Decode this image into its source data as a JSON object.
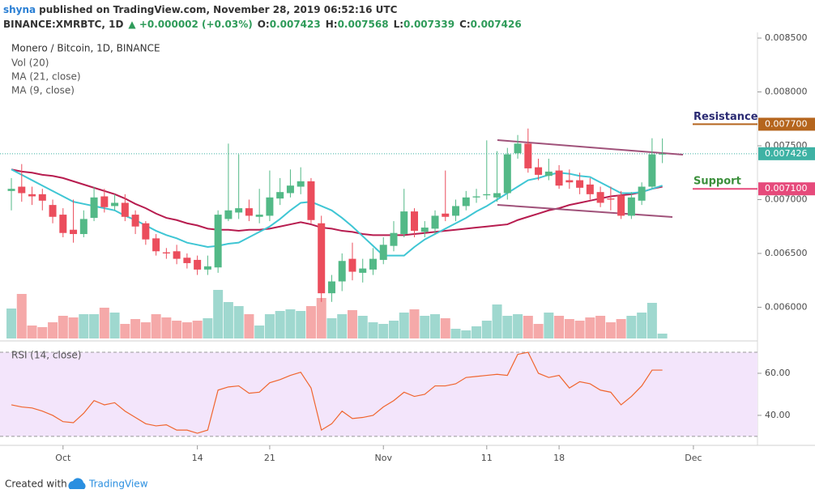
{
  "header": {
    "author": "shyna",
    "published": "published on TradingView.com, November 28, 2019 06:52:16 UTC",
    "symbol": "BINANCE:XMRBTC, 1D",
    "change": "▲ +0.000002 (+0.03%)",
    "ohlc": [
      {
        "key": "O:",
        "value": "0.007423"
      },
      {
        "key": "H:",
        "value": "0.007568"
      },
      {
        "key": "L:",
        "value": "0.007339"
      },
      {
        "key": "C:",
        "value": "0.007426"
      }
    ]
  },
  "footer": {
    "created": "Created with",
    "brand": "TradingView"
  },
  "chart_data": [
    {
      "type": "candlestick",
      "title": "Monero / Bitcoin, 1D, BINANCE",
      "indicators": [
        "Vol (20)",
        "MA (21, close)",
        "MA (9, close)"
      ],
      "up_color": "#53b987",
      "down_color": "#eb4d5c",
      "xlim": [
        -1.1,
        72.2
      ],
      "xticks": [
        {
          "value": 5,
          "label": "Oct"
        },
        {
          "value": 18,
          "label": "14"
        },
        {
          "value": 25,
          "label": "21"
        },
        {
          "value": 36,
          "label": "Nov"
        },
        {
          "value": 46,
          "label": "11"
        },
        {
          "value": 53,
          "label": "18"
        },
        {
          "value": 66,
          "label": "Dec"
        }
      ],
      "ylim": [
        0.00571,
        0.008553
      ],
      "yticks": [
        {
          "value": 0.006,
          "label": "0.006000"
        },
        {
          "value": 0.0065,
          "label": "0.006500"
        },
        {
          "value": 0.007,
          "label": "0.007000"
        },
        {
          "value": 0.0075,
          "label": "0.007500"
        },
        {
          "value": 0.008,
          "label": "0.008000"
        },
        {
          "value": 0.0085,
          "label": "0.008500"
        }
      ],
      "open": [
        0.00708,
        0.00712,
        0.00705,
        0.00705,
        0.00695,
        0.00686,
        0.00672,
        0.00668,
        0.00683,
        0.00703,
        0.00694,
        0.00697,
        0.00686,
        0.00678,
        0.00664,
        0.00651,
        0.00652,
        0.00646,
        0.00644,
        0.00635,
        0.00637,
        0.00682,
        0.00688,
        0.00692,
        0.00684,
        0.00685,
        0.00701,
        0.00706,
        0.00712,
        0.00717,
        0.00678,
        0.00613,
        0.00624,
        0.00645,
        0.00632,
        0.00635,
        0.00644,
        0.00657,
        0.00668,
        0.00689,
        0.0067,
        0.00673,
        0.00687,
        0.00685,
        0.00694,
        0.00702,
        0.00704,
        0.00702,
        0.00706,
        0.00743,
        0.00752,
        0.0073,
        0.00722,
        0.00727,
        0.00718,
        0.00718,
        0.00714,
        0.00707,
        0.00701,
        0.00704,
        0.00685,
        0.00699,
        0.00712,
        0.007423
      ],
      "high": [
        0.0072,
        0.00733,
        0.00712,
        0.0071,
        0.007,
        0.00692,
        0.007,
        0.0069,
        0.00712,
        0.0071,
        0.00705,
        0.00705,
        0.0069,
        0.0068,
        0.00668,
        0.00655,
        0.00658,
        0.0065,
        0.00648,
        0.00648,
        0.0069,
        0.00752,
        0.00742,
        0.007,
        0.0071,
        0.00727,
        0.0072,
        0.00728,
        0.0073,
        0.0072,
        0.00685,
        0.0063,
        0.0065,
        0.0066,
        0.00645,
        0.00655,
        0.00665,
        0.0068,
        0.0071,
        0.00692,
        0.0068,
        0.0069,
        0.00727,
        0.007,
        0.00708,
        0.0071,
        0.00755,
        0.00745,
        0.00748,
        0.0076,
        0.00766,
        0.00738,
        0.00738,
        0.00732,
        0.00728,
        0.00725,
        0.0072,
        0.00712,
        0.00712,
        0.00708,
        0.00707,
        0.00716,
        0.00757,
        0.007568
      ],
      "low": [
        0.0069,
        0.00698,
        0.00695,
        0.0069,
        0.00678,
        0.00665,
        0.0066,
        0.00665,
        0.0068,
        0.00688,
        0.0069,
        0.0068,
        0.00668,
        0.00658,
        0.00648,
        0.00645,
        0.0064,
        0.00636,
        0.0063,
        0.0063,
        0.00632,
        0.0068,
        0.00682,
        0.0068,
        0.00678,
        0.0068,
        0.00695,
        0.00702,
        0.00705,
        0.00678,
        0.00605,
        0.00605,
        0.00615,
        0.00625,
        0.00623,
        0.0063,
        0.0064,
        0.00652,
        0.00665,
        0.00665,
        0.00665,
        0.00668,
        0.0068,
        0.0068,
        0.0069,
        0.00697,
        0.007,
        0.00698,
        0.007,
        0.00738,
        0.00725,
        0.00718,
        0.00718,
        0.0071,
        0.0071,
        0.00705,
        0.007,
        0.00693,
        0.0069,
        0.00682,
        0.00682,
        0.00695,
        0.0071,
        0.007339
      ],
      "close": [
        0.0071,
        0.00706,
        0.00703,
        0.00699,
        0.00684,
        0.00669,
        0.00668,
        0.00682,
        0.00702,
        0.00693,
        0.00697,
        0.00684,
        0.00675,
        0.00663,
        0.00652,
        0.0065,
        0.00645,
        0.00641,
        0.00635,
        0.00638,
        0.00686,
        0.0069,
        0.00692,
        0.00685,
        0.00686,
        0.00702,
        0.00707,
        0.00713,
        0.00717,
        0.00681,
        0.00613,
        0.00624,
        0.00643,
        0.00633,
        0.00636,
        0.00645,
        0.00658,
        0.00669,
        0.00689,
        0.00671,
        0.00674,
        0.00685,
        0.00684,
        0.00694,
        0.00702,
        0.00703,
        0.00705,
        0.00706,
        0.00742,
        0.00752,
        0.00729,
        0.00723,
        0.00726,
        0.00713,
        0.00716,
        0.00711,
        0.00705,
        0.00697,
        0.007,
        0.00685,
        0.00702,
        0.00712,
        0.00742,
        0.007426
      ],
      "series": [
        {
          "color": "#b71c4f",
          "values": [
            0.00728,
            0.00726,
            0.00725,
            0.00723,
            0.00722,
            0.0072,
            0.00717,
            0.00714,
            0.00711,
            0.00708,
            0.00705,
            0.00701,
            0.00696,
            0.00692,
            0.00687,
            0.00683,
            0.00681,
            0.00678,
            0.00676,
            0.00673,
            0.00672,
            0.00672,
            0.00671,
            0.00672,
            0.00672,
            0.00673,
            0.00675,
            0.00677,
            0.00679,
            0.00677,
            0.00674,
            0.00673,
            0.00671,
            0.0067,
            0.00668,
            0.00667,
            0.00667,
            0.00667,
            0.00667,
            0.00668,
            0.00669,
            0.0067,
            0.00671,
            0.00672,
            0.00673,
            0.00674,
            0.00675,
            0.00676,
            0.00677,
            0.00681,
            0.00684,
            0.00687,
            0.0069,
            0.00692,
            0.00695,
            0.00697,
            0.00699,
            0.00701,
            0.00703,
            0.00704,
            0.00705,
            0.00707,
            0.0071,
            0.00712
          ]
        },
        {
          "color": "#3fc6d4",
          "values": [
            0.00728,
            0.00723,
            0.00718,
            0.00713,
            0.00708,
            0.00703,
            0.00698,
            0.00696,
            0.00694,
            0.00692,
            0.0069,
            0.00685,
            0.00681,
            0.00676,
            0.00671,
            0.00667,
            0.00664,
            0.0066,
            0.00658,
            0.00656,
            0.00657,
            0.00659,
            0.0066,
            0.00665,
            0.0067,
            0.00675,
            0.00682,
            0.0069,
            0.00697,
            0.00698,
            0.00694,
            0.0069,
            0.00683,
            0.00675,
            0.00666,
            0.00657,
            0.00648,
            0.00648,
            0.00648,
            0.00656,
            0.00663,
            0.00668,
            0.00673,
            0.00678,
            0.00683,
            0.00689,
            0.00694,
            0.007,
            0.00706,
            0.00712,
            0.00718,
            0.0072,
            0.00723,
            0.00725,
            0.00724,
            0.00722,
            0.00721,
            0.00716,
            0.00711,
            0.00706,
            0.00706,
            0.00707,
            0.0071,
            0.00713
          ]
        }
      ],
      "volume": {
        "lim": [
          0,
          100
        ],
        "up_color": "#9fd8cf",
        "down_color": "#f5a9a9",
        "values": [
          37,
          55,
          16,
          14,
          20,
          28,
          26,
          30,
          30,
          38,
          32,
          18,
          24,
          20,
          30,
          26,
          22,
          20,
          22,
          25,
          60,
          45,
          40,
          30,
          16,
          30,
          34,
          36,
          34,
          40,
          50,
          25,
          30,
          35,
          28,
          20,
          18,
          22,
          32,
          36,
          28,
          30,
          25,
          12,
          10,
          15,
          22,
          42,
          28,
          30,
          28,
          18,
          32,
          28,
          24,
          22,
          26,
          28,
          20,
          24,
          28,
          32,
          44,
          6
        ]
      },
      "last_price": {
        "value": 0.007426,
        "label": "0.007426",
        "color": "#3eb2a4"
      },
      "price_lines": [
        {
          "name": "Resistance",
          "value": 0.0077,
          "label": "0.007700",
          "color": "#b5651d",
          "text_color": "#2b2b73"
        },
        {
          "name": "Support",
          "value": 0.0071,
          "label": "0.007100",
          "color": "#e64a7b",
          "text_color": "#3b8f3b"
        }
      ]
    },
    {
      "type": "line",
      "title": "RSI (14, close)",
      "color": "#f0652e",
      "band": [
        30,
        70
      ],
      "band_color": "#f3e5fb",
      "ylim": [
        26.5,
        73.85
      ],
      "yticks": [
        {
          "value": 40,
          "label": "40.00"
        },
        {
          "value": 60,
          "label": "60.00"
        }
      ],
      "values": [
        45,
        44,
        43.5,
        42,
        40,
        37,
        36.5,
        41,
        47,
        45,
        46,
        42,
        39,
        36,
        35,
        35.5,
        33,
        33,
        31.5,
        33,
        52,
        53.5,
        54,
        50.5,
        51,
        55.5,
        57,
        59,
        60.5,
        53,
        33,
        36,
        42,
        38.5,
        39,
        40,
        44,
        47,
        51,
        49,
        50,
        54,
        54,
        55,
        58,
        58.5,
        59,
        59.5,
        59,
        69,
        70,
        60,
        58,
        59,
        53,
        56,
        55,
        52,
        51,
        45,
        49,
        54,
        61.5,
        61.5
      ]
    }
  ]
}
